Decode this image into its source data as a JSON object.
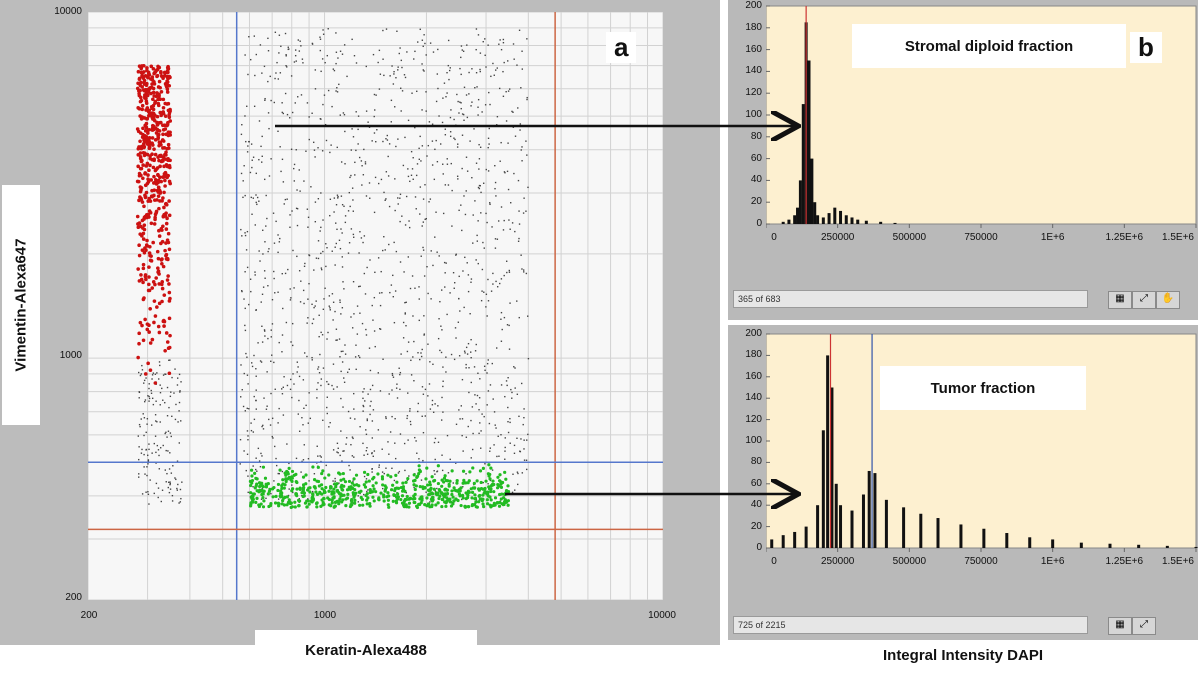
{
  "figure": {
    "panel_a": {
      "letter": "a",
      "xlabel": "Keratin-Alexa488",
      "ylabel": "Vimentin-Alexa647",
      "x_ticks": [
        "200",
        "1000",
        "10000"
      ],
      "y_ticks": [
        "10000",
        "1000",
        "200"
      ]
    },
    "panel_b": {
      "letter": "b",
      "xlabel": "Integral Intensity DAPI"
    },
    "top_hist": {
      "title": "Stromal diploid fraction",
      "status": "365 of 683",
      "x_ticks": [
        "0",
        "250000",
        "500000",
        "750000",
        "1E+6",
        "1.25E+6",
        "1.5E+6"
      ],
      "y_ticks": [
        "200",
        "180",
        "160",
        "140",
        "120",
        "100",
        "80",
        "60",
        "40",
        "20",
        "0"
      ]
    },
    "bottom_hist": {
      "title": "Tumor fraction",
      "status": "725 of 2215",
      "x_ticks": [
        "0",
        "250000",
        "500000",
        "750000",
        "1E+6",
        "1.25E+6",
        "1.5E+6"
      ],
      "y_ticks": [
        "200",
        "180",
        "160",
        "140",
        "120",
        "100",
        "80",
        "60",
        "40",
        "20",
        "0"
      ]
    },
    "colors": {
      "red_population": "#cc1111",
      "green_population": "#22bb22",
      "gray_population": "#444444",
      "gate_blue": "#5577cc",
      "gate_red": "#cc6644",
      "hist_bg": "#fdf0d0"
    }
  },
  "chart_data": [
    {
      "type": "scatter",
      "xlabel": "Keratin-Alexa488",
      "ylabel": "Vimentin-Alexa647",
      "xscale": "log",
      "yscale": "log",
      "xlim": [
        200,
        10000
      ],
      "ylim": [
        200,
        10000
      ],
      "grid": true,
      "gates": {
        "vertical": [
          550,
          4800
        ],
        "horizontal": [
          500,
          320
        ]
      },
      "populations": [
        {
          "color": "red",
          "x_range": [
            280,
            350
          ],
          "y_range": [
            800,
            7000
          ]
        },
        {
          "color": "green",
          "x_range": [
            600,
            3500
          ],
          "y_range": [
            370,
            500
          ]
        },
        {
          "color": "gray",
          "x_range": [
            280,
            4000
          ],
          "y_range": [
            380,
            9000
          ]
        }
      ]
    },
    {
      "type": "bar",
      "title": "Stromal diploid fraction",
      "xlabel": "Integral Intensity DAPI",
      "xlim": [
        0,
        1500000
      ],
      "ylim": [
        0,
        200
      ],
      "marker_lines": [
        140000
      ],
      "x": [
        60000,
        80000,
        100000,
        110000,
        120000,
        130000,
        140000,
        150000,
        160000,
        170000,
        180000,
        200000,
        220000,
        240000,
        260000,
        280000,
        300000,
        320000,
        350000,
        400000,
        450000
      ],
      "values": [
        2,
        4,
        8,
        15,
        40,
        110,
        185,
        150,
        60,
        20,
        8,
        6,
        10,
        15,
        12,
        8,
        6,
        4,
        3,
        2,
        1
      ]
    },
    {
      "type": "bar",
      "title": "Tumor fraction",
      "xlabel": "Integral Intensity DAPI",
      "xlim": [
        0,
        1500000
      ],
      "ylim": [
        0,
        200
      ],
      "marker_lines": [
        225000,
        370000
      ],
      "x": [
        20000,
        60000,
        100000,
        140000,
        180000,
        200000,
        215000,
        230000,
        245000,
        260000,
        300000,
        340000,
        360000,
        380000,
        420000,
        480000,
        540000,
        600000,
        680000,
        760000,
        840000,
        920000,
        1000000,
        1100000,
        1200000,
        1300000,
        1400000,
        1500000
      ],
      "values": [
        8,
        12,
        15,
        20,
        40,
        110,
        180,
        150,
        60,
        40,
        35,
        50,
        72,
        70,
        45,
        38,
        32,
        28,
        22,
        18,
        14,
        10,
        8,
        5,
        4,
        3,
        2,
        1
      ]
    }
  ]
}
